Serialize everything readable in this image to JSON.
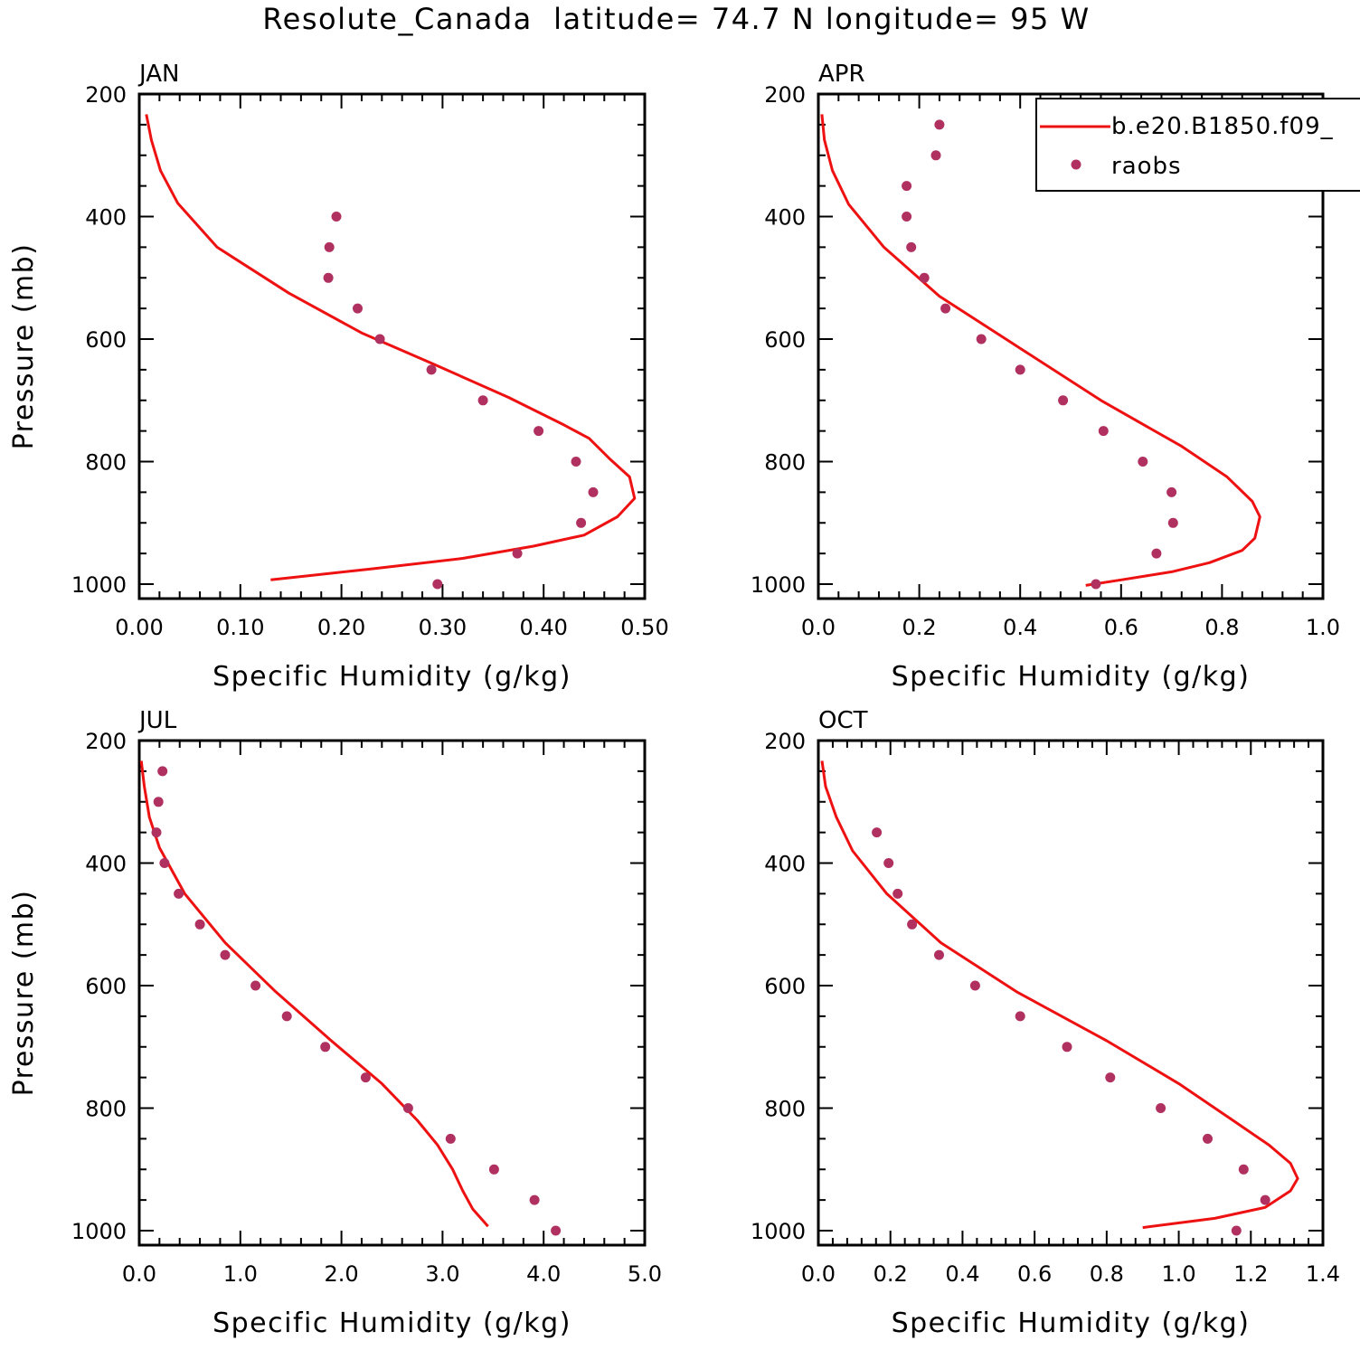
{
  "page_title": "Resolute_Canada  latitude= 74.7 N longitude= 95 W",
  "legend": {
    "model_label": "b.e20.B1850.f09_",
    "obs_label": "raobs"
  },
  "colors": {
    "model_line": "#ee1111",
    "obs_marker": "#b03060",
    "axes": "#000000"
  },
  "chart_data": [
    {
      "type": "scatter",
      "panel": "JAN",
      "xlabel": "Specific Humidity (g/kg)",
      "ylabel": "Pressure (mb)",
      "xlim": [
        0,
        0.5
      ],
      "ylim": [
        200,
        1000
      ],
      "y_inverted": true,
      "xticks": [
        "0.00",
        "0.10",
        "0.20",
        "0.30",
        "0.40",
        "0.50"
      ],
      "yticks": [
        "200",
        "400",
        "600",
        "800",
        "1000"
      ],
      "series": [
        {
          "name": "b.e20.B1850.f09_",
          "style": "line",
          "points": [
            [
              0.007,
              233
            ],
            [
              0.012,
              275
            ],
            [
              0.021,
              325
            ],
            [
              0.038,
              378
            ],
            [
              0.077,
              450
            ],
            [
              0.148,
              525
            ],
            [
              0.22,
              590
            ],
            [
              0.29,
              640
            ],
            [
              0.365,
              695
            ],
            [
              0.42,
              740
            ],
            [
              0.445,
              762
            ],
            [
              0.465,
              795
            ],
            [
              0.485,
              825
            ],
            [
              0.49,
              860
            ],
            [
              0.473,
              890
            ],
            [
              0.44,
              920
            ],
            [
              0.39,
              938
            ],
            [
              0.32,
              958
            ],
            [
              0.23,
              975
            ],
            [
              0.13,
              993
            ]
          ]
        },
        {
          "name": "raobs",
          "style": "markers",
          "points": [
            [
              0.195,
              400
            ],
            [
              0.188,
              450
            ],
            [
              0.187,
              500
            ],
            [
              0.216,
              550
            ],
            [
              0.238,
              600
            ],
            [
              0.289,
              650
            ],
            [
              0.34,
              700
            ],
            [
              0.395,
              750
            ],
            [
              0.432,
              800
            ],
            [
              0.449,
              850
            ],
            [
              0.437,
              900
            ],
            [
              0.374,
              950
            ],
            [
              0.295,
              1000
            ]
          ]
        }
      ]
    },
    {
      "type": "scatter",
      "panel": "APR",
      "xlabel": "Specific Humidity (g/kg)",
      "ylabel": "",
      "xlim": [
        0,
        1.0
      ],
      "ylim": [
        200,
        1000
      ],
      "y_inverted": true,
      "legend_position": "top-right",
      "xticks": [
        "0.0",
        "0.2",
        "0.4",
        "0.6",
        "0.8",
        "1.0"
      ],
      "yticks": [
        "200",
        "400",
        "600",
        "800",
        "1000"
      ],
      "series": [
        {
          "name": "b.e20.B1850.f09_",
          "style": "line",
          "points": [
            [
              0.007,
              233
            ],
            [
              0.012,
              275
            ],
            [
              0.028,
              325
            ],
            [
              0.06,
              380
            ],
            [
              0.13,
              450
            ],
            [
              0.24,
              530
            ],
            [
              0.4,
              615
            ],
            [
              0.56,
              700
            ],
            [
              0.72,
              775
            ],
            [
              0.81,
              825
            ],
            [
              0.86,
              865
            ],
            [
              0.875,
              890
            ],
            [
              0.865,
              925
            ],
            [
              0.84,
              945
            ],
            [
              0.775,
              965
            ],
            [
              0.7,
              980
            ],
            [
              0.6,
              993
            ],
            [
              0.53,
              1002
            ]
          ]
        },
        {
          "name": "raobs",
          "style": "markers",
          "points": [
            [
              0.24,
              250
            ],
            [
              0.233,
              300
            ],
            [
              0.175,
              350
            ],
            [
              0.175,
              400
            ],
            [
              0.184,
              450
            ],
            [
              0.21,
              500
            ],
            [
              0.252,
              550
            ],
            [
              0.323,
              600
            ],
            [
              0.4,
              650
            ],
            [
              0.485,
              700
            ],
            [
              0.565,
              750
            ],
            [
              0.643,
              800
            ],
            [
              0.7,
              850
            ],
            [
              0.703,
              900
            ],
            [
              0.67,
              950
            ],
            [
              0.55,
              1000
            ]
          ]
        }
      ]
    },
    {
      "type": "scatter",
      "panel": "JUL",
      "xlabel": "Specific Humidity (g/kg)",
      "ylabel": "Pressure (mb)",
      "xlim": [
        0,
        5.0
      ],
      "ylim": [
        200,
        1000
      ],
      "y_inverted": true,
      "xticks": [
        "0.0",
        "1.0",
        "2.0",
        "3.0",
        "4.0",
        "5.0"
      ],
      "yticks": [
        "200",
        "400",
        "600",
        "800",
        "1000"
      ],
      "series": [
        {
          "name": "b.e20.B1850.f09_",
          "style": "line",
          "points": [
            [
              0.02,
              233
            ],
            [
              0.05,
              275
            ],
            [
              0.1,
              325
            ],
            [
              0.2,
              375
            ],
            [
              0.45,
              450
            ],
            [
              0.85,
              530
            ],
            [
              1.35,
              610
            ],
            [
              1.9,
              690
            ],
            [
              2.4,
              760
            ],
            [
              2.75,
              820
            ],
            [
              2.95,
              860
            ],
            [
              3.1,
              900
            ],
            [
              3.2,
              935
            ],
            [
              3.3,
              965
            ],
            [
              3.45,
              993
            ]
          ]
        },
        {
          "name": "raobs",
          "style": "markers",
          "points": [
            [
              0.23,
              250
            ],
            [
              0.19,
              300
            ],
            [
              0.17,
              350
            ],
            [
              0.25,
              400
            ],
            [
              0.39,
              450
            ],
            [
              0.6,
              500
            ],
            [
              0.85,
              550
            ],
            [
              1.15,
              600
            ],
            [
              1.46,
              650
            ],
            [
              1.84,
              700
            ],
            [
              2.24,
              750
            ],
            [
              2.66,
              800
            ],
            [
              3.08,
              850
            ],
            [
              3.51,
              900
            ],
            [
              3.91,
              950
            ],
            [
              4.12,
              1000
            ]
          ]
        }
      ]
    },
    {
      "type": "scatter",
      "panel": "OCT",
      "xlabel": "Specific Humidity (g/kg)",
      "ylabel": "",
      "xlim": [
        0,
        1.4
      ],
      "ylim": [
        200,
        1000
      ],
      "y_inverted": true,
      "xticks": [
        "0.0",
        "0.2",
        "0.4",
        "0.6",
        "0.8",
        "1.0",
        "1.2",
        "1.4"
      ],
      "yticks": [
        "200",
        "400",
        "600",
        "800",
        "1000"
      ],
      "series": [
        {
          "name": "b.e20.B1850.f09_",
          "style": "line",
          "points": [
            [
              0.01,
              233
            ],
            [
              0.02,
              275
            ],
            [
              0.05,
              325
            ],
            [
              0.095,
              380
            ],
            [
              0.19,
              450
            ],
            [
              0.34,
              530
            ],
            [
              0.55,
              610
            ],
            [
              0.8,
              690
            ],
            [
              1.0,
              760
            ],
            [
              1.15,
              820
            ],
            [
              1.25,
              860
            ],
            [
              1.31,
              890
            ],
            [
              1.33,
              915
            ],
            [
              1.31,
              935
            ],
            [
              1.24,
              962
            ],
            [
              1.1,
              980
            ],
            [
              0.9,
              995
            ]
          ]
        },
        {
          "name": "raobs",
          "style": "markers",
          "points": [
            [
              0.162,
              350
            ],
            [
              0.195,
              400
            ],
            [
              0.22,
              450
            ],
            [
              0.26,
              500
            ],
            [
              0.335,
              550
            ],
            [
              0.435,
              600
            ],
            [
              0.56,
              650
            ],
            [
              0.69,
              700
            ],
            [
              0.81,
              750
            ],
            [
              0.95,
              800
            ],
            [
              1.08,
              850
            ],
            [
              1.18,
              900
            ],
            [
              1.24,
              950
            ],
            [
              1.16,
              1000
            ]
          ]
        }
      ]
    }
  ]
}
